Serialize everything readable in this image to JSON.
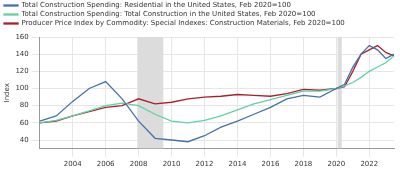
{
  "chart_data": {
    "type": "line",
    "x": [
      2002,
      2003,
      2004,
      2005,
      2006,
      2007,
      2008,
      2009,
      2010,
      2011,
      2012,
      2013,
      2014,
      2015,
      2016,
      2017,
      2018,
      2019,
      2020,
      2020.5,
      2021,
      2021.5,
      2022,
      2022.5,
      2023,
      2023.5
    ],
    "series": [
      {
        "name": "Total Construction Spending: Residential in the United States, Feb 2020=100",
        "color": "#4572a7",
        "values": [
          62,
          68,
          85,
          100,
          108,
          88,
          62,
          42,
          40,
          38,
          45,
          55,
          62,
          70,
          78,
          88,
          92,
          90,
          100,
          105,
          125,
          140,
          150,
          145,
          135,
          140
        ]
      },
      {
        "name": "Total Construction Spending: Total Construction in the United States, Feb 2020=100",
        "color": "#5fd3a3",
        "values": [
          60,
          63,
          68,
          74,
          80,
          83,
          80,
          70,
          62,
          60,
          63,
          68,
          75,
          82,
          87,
          92,
          97,
          97,
          100,
          103,
          107,
          113,
          120,
          125,
          130,
          138
        ]
      },
      {
        "name": "Producer Price Index by Commodity: Special Indexes: Construction Materials, Feb 2020=100",
        "color": "#aa1f2e",
        "values": [
          60,
          62,
          68,
          73,
          78,
          80,
          88,
          82,
          84,
          88,
          90,
          91,
          93,
          92,
          91,
          94,
          99,
          98,
          100,
          102,
          120,
          140,
          145,
          150,
          142,
          138
        ]
      }
    ],
    "xlim": [
      2002,
      2023.5
    ],
    "xticks": [
      2004,
      2006,
      2008,
      2010,
      2012,
      2014,
      2016,
      2018,
      2020,
      2022
    ],
    "ylim": [
      30,
      160
    ],
    "yticks": [
      40,
      60,
      80,
      100,
      120,
      140,
      160
    ],
    "y_label": "Index",
    "recessions": [
      {
        "start": 2007.92,
        "end": 2009.5
      },
      {
        "start": 2020.08,
        "end": 2020.33
      }
    ],
    "grid": true,
    "legend": "top-left"
  }
}
